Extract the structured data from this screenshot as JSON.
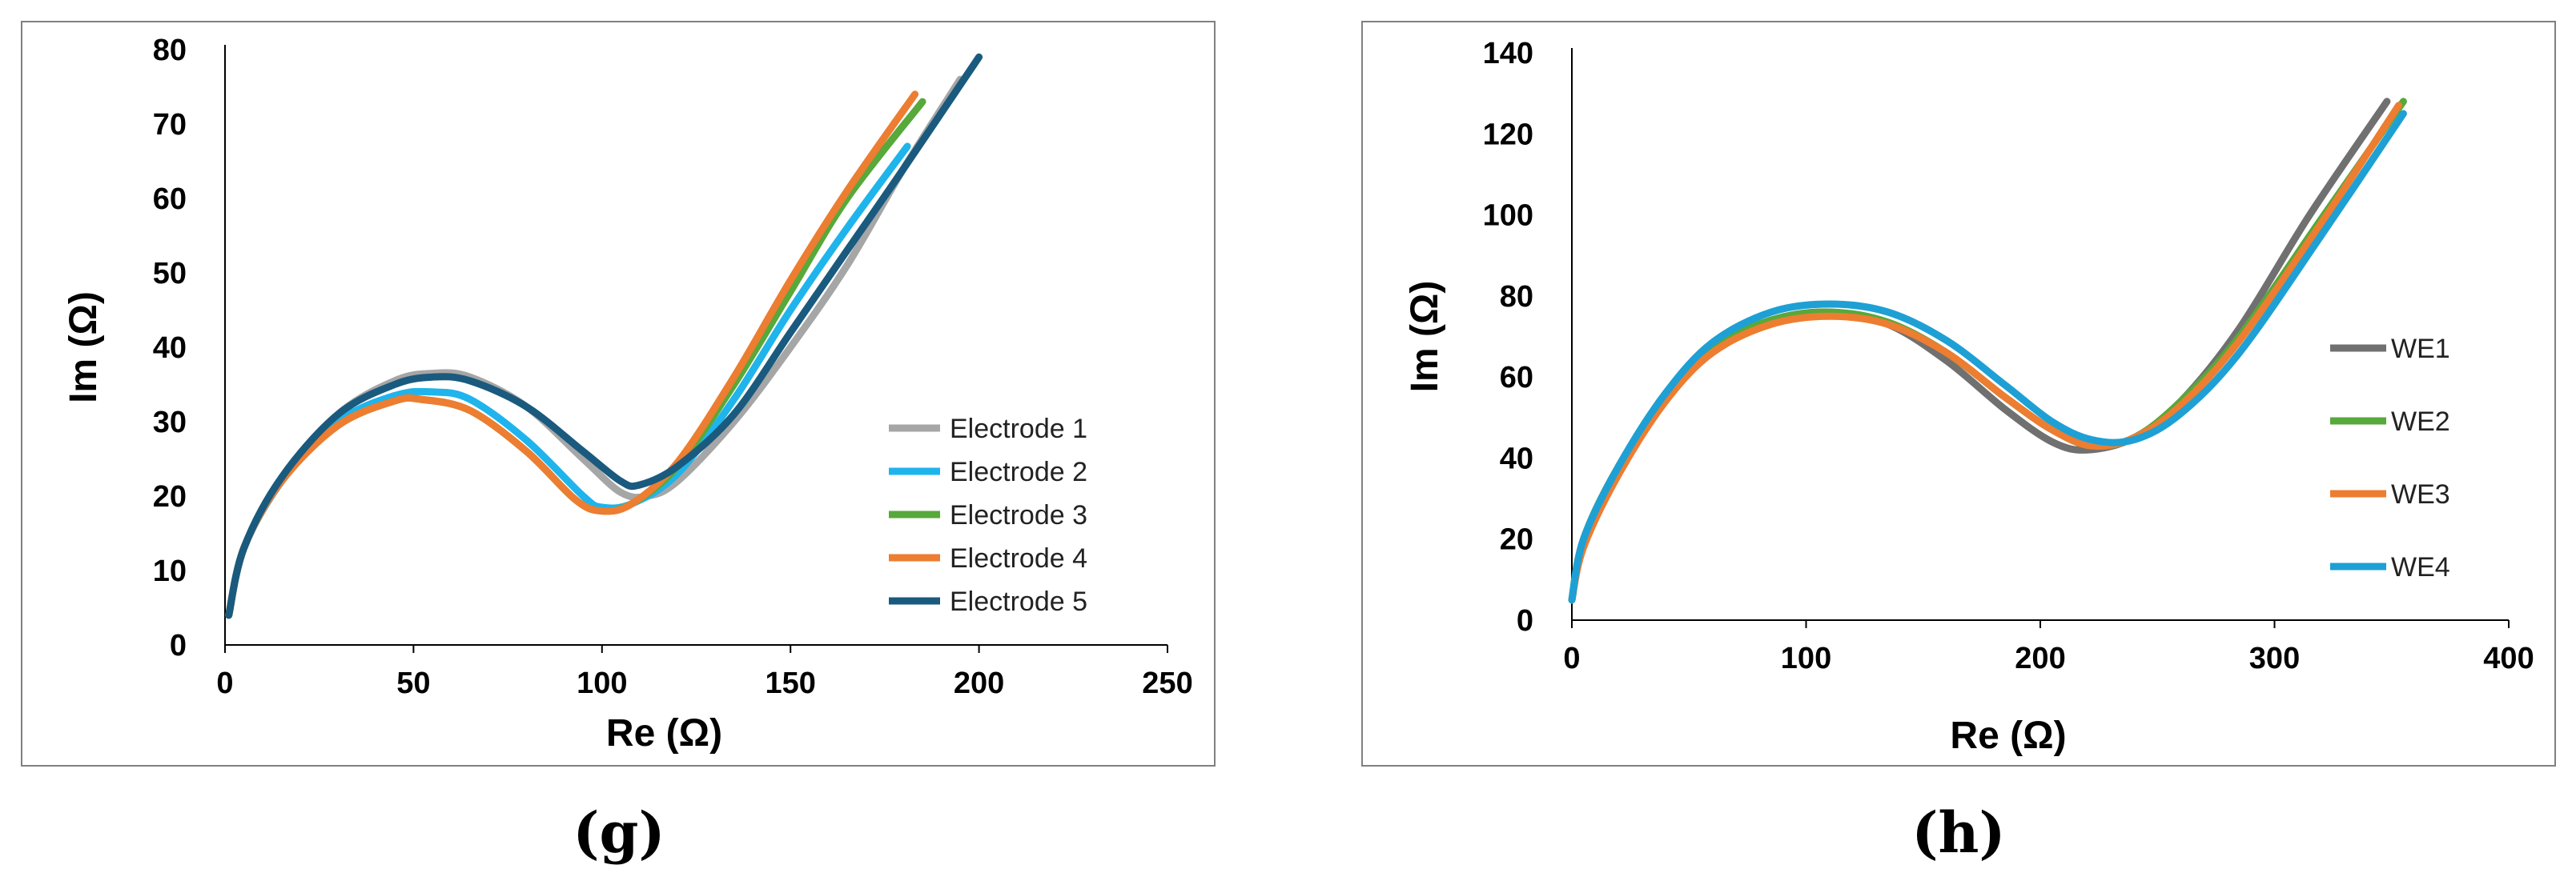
{
  "captions": {
    "left": "(g)",
    "right": "(h)"
  },
  "chart_data": [
    {
      "type": "line",
      "title": "",
      "xlabel": "Re (Ω)",
      "ylabel": "Im (Ω)",
      "xlim": [
        0,
        250
      ],
      "ylim": [
        0,
        80
      ],
      "xticks": [
        0,
        50,
        100,
        150,
        200,
        250
      ],
      "yticks": [
        0,
        10,
        20,
        30,
        40,
        50,
        60,
        70,
        80
      ],
      "grid": false,
      "legend_position": "right",
      "series": [
        {
          "name": "Electrode 1",
          "color": "#a6a6a6",
          "points": [
            [
              1,
              4
            ],
            [
              5,
              13
            ],
            [
              15,
              22
            ],
            [
              30,
              31
            ],
            [
              45,
              35.5
            ],
            [
              55,
              36.5
            ],
            [
              65,
              36
            ],
            [
              80,
              32
            ],
            [
              95,
              25
            ],
            [
              105,
              20.5
            ],
            [
              112,
              20
            ],
            [
              120,
              22
            ],
            [
              135,
              30
            ],
            [
              150,
              40
            ],
            [
              165,
              51
            ],
            [
              180,
              64
            ],
            [
              195,
              76
            ]
          ]
        },
        {
          "name": "Electrode 2",
          "color": "#1fb4ec",
          "points": [
            [
              1,
              4
            ],
            [
              5,
              13
            ],
            [
              15,
              22
            ],
            [
              30,
              30
            ],
            [
              45,
              33.5
            ],
            [
              55,
              34
            ],
            [
              65,
              33
            ],
            [
              80,
              27.5
            ],
            [
              95,
              20
            ],
            [
              100,
              18.5
            ],
            [
              108,
              19
            ],
            [
              120,
              23
            ],
            [
              135,
              33
            ],
            [
              150,
              45
            ],
            [
              165,
              56
            ],
            [
              181,
              67
            ]
          ]
        },
        {
          "name": "Electrode 3",
          "color": "#56a93a",
          "points": [
            [
              1,
              4
            ],
            [
              5,
              13
            ],
            [
              15,
              22
            ],
            [
              30,
              29.5
            ],
            [
              45,
              32.8
            ],
            [
              52,
              33
            ],
            [
              65,
              31.5
            ],
            [
              80,
              26
            ],
            [
              93,
              19.5
            ],
            [
              100,
              18
            ],
            [
              108,
              19
            ],
            [
              120,
              24
            ],
            [
              135,
              35
            ],
            [
              150,
              47.5
            ],
            [
              165,
              60
            ],
            [
              185,
              73
            ]
          ]
        },
        {
          "name": "Electrode 4",
          "color": "#ed7d31",
          "points": [
            [
              1,
              4
            ],
            [
              5,
              13
            ],
            [
              15,
              22
            ],
            [
              30,
              29.5
            ],
            [
              45,
              32.8
            ],
            [
              52,
              33
            ],
            [
              65,
              31.5
            ],
            [
              80,
              26
            ],
            [
              93,
              19.5
            ],
            [
              100,
              18
            ],
            [
              108,
              19
            ],
            [
              120,
              24.5
            ],
            [
              135,
              36
            ],
            [
              150,
              49
            ],
            [
              165,
              61
            ],
            [
              183,
              74
            ]
          ]
        },
        {
          "name": "Electrode 5",
          "color": "#1a5a7e",
          "points": [
            [
              1,
              4
            ],
            [
              5,
              13
            ],
            [
              15,
              22.5
            ],
            [
              30,
              31
            ],
            [
              45,
              35
            ],
            [
              55,
              36
            ],
            [
              65,
              35.5
            ],
            [
              80,
              32
            ],
            [
              95,
              26
            ],
            [
              105,
              22
            ],
            [
              110,
              21.5
            ],
            [
              120,
              24
            ],
            [
              135,
              31
            ],
            [
              150,
              42
            ],
            [
              165,
              53
            ],
            [
              180,
              64
            ],
            [
              200,
              79
            ]
          ]
        }
      ]
    },
    {
      "type": "line",
      "title": "",
      "xlabel": "Re (Ω)",
      "ylabel": "Im (Ω)",
      "xlim": [
        0,
        400
      ],
      "ylim": [
        0,
        140
      ],
      "xticks": [
        0,
        100,
        200,
        300,
        400
      ],
      "yticks": [
        0,
        20,
        40,
        60,
        80,
        100,
        120,
        140
      ],
      "grid": false,
      "legend_position": "right",
      "series": [
        {
          "name": "WE1",
          "color": "#707070",
          "points": [
            [
              0,
              5
            ],
            [
              5,
              20
            ],
            [
              20,
              38
            ],
            [
              40,
              55
            ],
            [
              60,
              67
            ],
            [
              85,
              74
            ],
            [
              110,
              76
            ],
            [
              135,
              73
            ],
            [
              160,
              64
            ],
            [
              185,
              52
            ],
            [
              205,
              44
            ],
            [
              220,
              42
            ],
            [
              240,
              45
            ],
            [
              260,
              54
            ],
            [
              285,
              72
            ],
            [
              315,
              100
            ],
            [
              348,
              128
            ]
          ]
        },
        {
          "name": "WE2",
          "color": "#56a93a",
          "points": [
            [
              0,
              5
            ],
            [
              5,
              20
            ],
            [
              20,
              38
            ],
            [
              40,
              55
            ],
            [
              60,
              67
            ],
            [
              85,
              74
            ],
            [
              110,
              76
            ],
            [
              135,
              73.5
            ],
            [
              160,
              66
            ],
            [
              185,
              55
            ],
            [
              205,
              47
            ],
            [
              222,
              43
            ],
            [
              240,
              45
            ],
            [
              260,
              54
            ],
            [
              285,
              70
            ],
            [
              320,
              99
            ],
            [
              355,
              128
            ]
          ]
        },
        {
          "name": "WE3",
          "color": "#ed7d31",
          "points": [
            [
              0,
              5
            ],
            [
              5,
              18
            ],
            [
              20,
              36
            ],
            [
              40,
              54
            ],
            [
              60,
              66
            ],
            [
              85,
              73
            ],
            [
              110,
              75
            ],
            [
              135,
              73
            ],
            [
              160,
              66
            ],
            [
              185,
              55
            ],
            [
              205,
              47
            ],
            [
              222,
              43
            ],
            [
              240,
              45
            ],
            [
              260,
              53
            ],
            [
              285,
              69
            ],
            [
              320,
              98
            ],
            [
              353,
              127
            ]
          ]
        },
        {
          "name": "WE4",
          "color": "#1ea0d4",
          "points": [
            [
              0,
              5
            ],
            [
              5,
              20
            ],
            [
              20,
              38
            ],
            [
              40,
              56
            ],
            [
              60,
              68.5
            ],
            [
              85,
              76
            ],
            [
              110,
              78
            ],
            [
              135,
              76
            ],
            [
              160,
              69
            ],
            [
              185,
              58
            ],
            [
              205,
              49
            ],
            [
              222,
              44.5
            ],
            [
              240,
              44.5
            ],
            [
              260,
              51
            ],
            [
              285,
              66
            ],
            [
              320,
              95
            ],
            [
              355,
              125
            ]
          ]
        }
      ]
    }
  ]
}
